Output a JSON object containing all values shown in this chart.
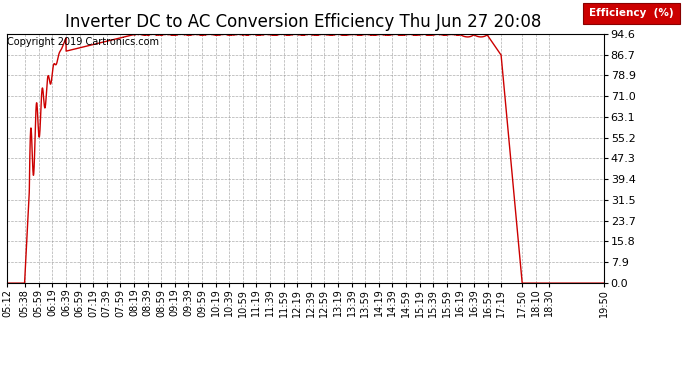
{
  "title": "Inverter DC to AC Conversion Efficiency Thu Jun 27 20:08",
  "copyright": "Copyright 2019 Cartronics.com",
  "legend_label": "Efficiency  (%)",
  "legend_bg": "#cc0000",
  "legend_text_color": "#ffffff",
  "line_color": "#cc0000",
  "background_color": "#ffffff",
  "plot_bg_color": "#ffffff",
  "grid_color": "#999999",
  "ylim": [
    0.0,
    94.6
  ],
  "yticks": [
    0.0,
    7.9,
    15.8,
    23.7,
    31.5,
    39.4,
    47.3,
    55.2,
    63.1,
    71.0,
    78.9,
    86.7,
    94.6
  ],
  "x_tick_labels": [
    "05:12",
    "05:38",
    "05:59",
    "06:19",
    "06:39",
    "06:59",
    "07:19",
    "07:39",
    "07:59",
    "08:19",
    "08:39",
    "08:59",
    "09:19",
    "09:39",
    "09:59",
    "10:19",
    "10:39",
    "10:59",
    "11:19",
    "11:39",
    "11:59",
    "12:19",
    "12:39",
    "12:59",
    "13:19",
    "13:39",
    "13:59",
    "14:19",
    "14:39",
    "14:59",
    "15:19",
    "15:39",
    "15:59",
    "16:19",
    "16:39",
    "16:59",
    "17:19",
    "17:50",
    "18:10",
    "18:30",
    "19:50"
  ],
  "title_fontsize": 12,
  "copyright_fontsize": 7,
  "axis_fontsize": 8,
  "line_width": 1.0
}
